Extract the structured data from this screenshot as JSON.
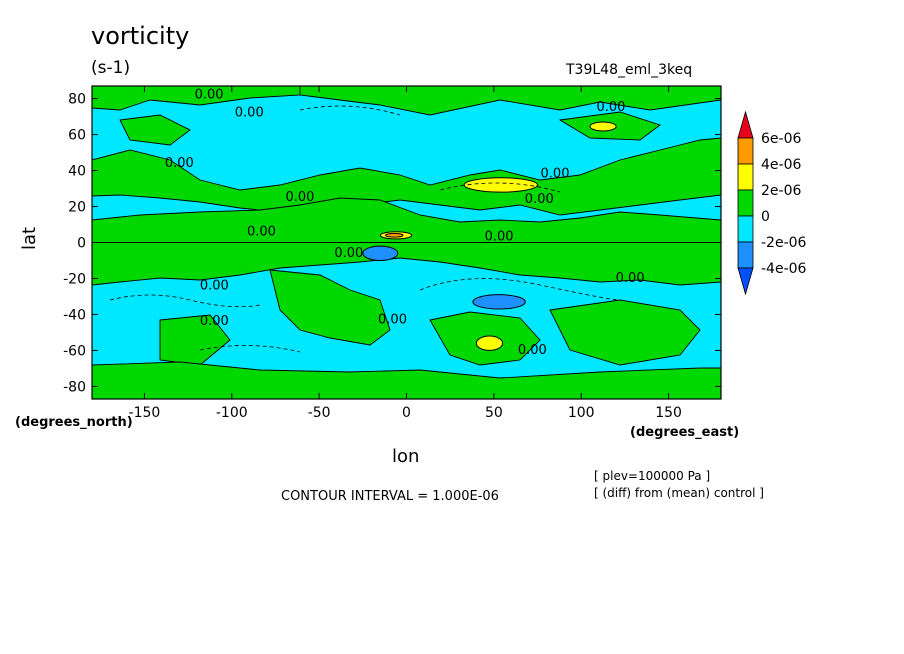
{
  "chart_data": {
    "type": "heatmap",
    "title": "vorticity",
    "units": "(s-1)",
    "run_name": "T39L48_eml_3keq",
    "xlabel": "lon",
    "ylabel": "lat",
    "x_units": "(degrees_east)",
    "y_units": "(degrees_north)",
    "xlim": [
      -180,
      180
    ],
    "ylim": [
      -87,
      87
    ],
    "x_ticks": [
      -150,
      -100,
      -50,
      0,
      50,
      100,
      150
    ],
    "x_tick_labels": [
      "-150",
      "-100",
      "-50",
      "0",
      "50",
      "100",
      "150"
    ],
    "y_ticks": [
      -80,
      -60,
      -40,
      -20,
      0,
      20,
      40,
      60,
      80
    ],
    "y_tick_labels": [
      "-80",
      "-60",
      "-40",
      "-20",
      "0",
      "20",
      "40",
      "60",
      "80"
    ],
    "contour_interval_text": "CONTOUR INTERVAL = 1.000E-06",
    "plev_text": "[ plev=100000 Pa ]",
    "diff_text": "[ (diff) from (mean) control ]",
    "contour_label": "0.00",
    "colorbar": {
      "labels": [
        "6e-06",
        "4e-06",
        "2e-06",
        "0",
        "-2e-06",
        "-4e-06"
      ],
      "colors": [
        "#e8001c",
        "#ff9a00",
        "#ffff00",
        "#00d800",
        "#00e8ff",
        "#1e90ff",
        "#0050ff"
      ]
    },
    "field_levels": {
      "background": "#00e8ff",
      "positive_low": "#00d800",
      "positive_mid": "#ffff00",
      "positive_high": "#ff9a00",
      "negative_mid": "#1e90ff"
    },
    "regions": [
      {
        "level": "positive_low",
        "lon": [
          -180,
          180
        ],
        "lat": [
          -4,
          12
        ]
      },
      {
        "level": "positive_mid",
        "lon": [
          33,
          75
        ],
        "lat": [
          28,
          36
        ]
      },
      {
        "level": "positive_mid",
        "lon": [
          105,
          120
        ],
        "lat": [
          62,
          67
        ]
      },
      {
        "level": "positive_mid",
        "lon": [
          -15,
          3
        ],
        "lat": [
          2,
          6
        ]
      },
      {
        "level": "positive_high",
        "lon": [
          -12,
          -2
        ],
        "lat": [
          3,
          5
        ]
      },
      {
        "level": "negative_mid",
        "lon": [
          -25,
          -5
        ],
        "lat": [
          -10,
          -2
        ]
      },
      {
        "level": "negative_mid",
        "lon": [
          38,
          68
        ],
        "lat": [
          -37,
          -29
        ]
      },
      {
        "level": "positive_mid",
        "lon": [
          40,
          55
        ],
        "lat": [
          -60,
          -52
        ]
      }
    ],
    "contour_label_points": [
      {
        "lon": -113,
        "lat": 80
      },
      {
        "lon": -90,
        "lat": 70
      },
      {
        "lon": -130,
        "lat": 42
      },
      {
        "lon": -61,
        "lat": 23
      },
      {
        "lon": -83,
        "lat": 4
      },
      {
        "lon": -33,
        "lat": -8
      },
      {
        "lon": 53,
        "lat": 1
      },
      {
        "lon": 76,
        "lat": 22
      },
      {
        "lon": 85,
        "lat": 36
      },
      {
        "lon": 117,
        "lat": 73
      },
      {
        "lon": -110,
        "lat": -26
      },
      {
        "lon": -110,
        "lat": -46
      },
      {
        "lon": -8,
        "lat": -45
      },
      {
        "lon": 72,
        "lat": -62
      },
      {
        "lon": 128,
        "lat": -22
      }
    ]
  }
}
